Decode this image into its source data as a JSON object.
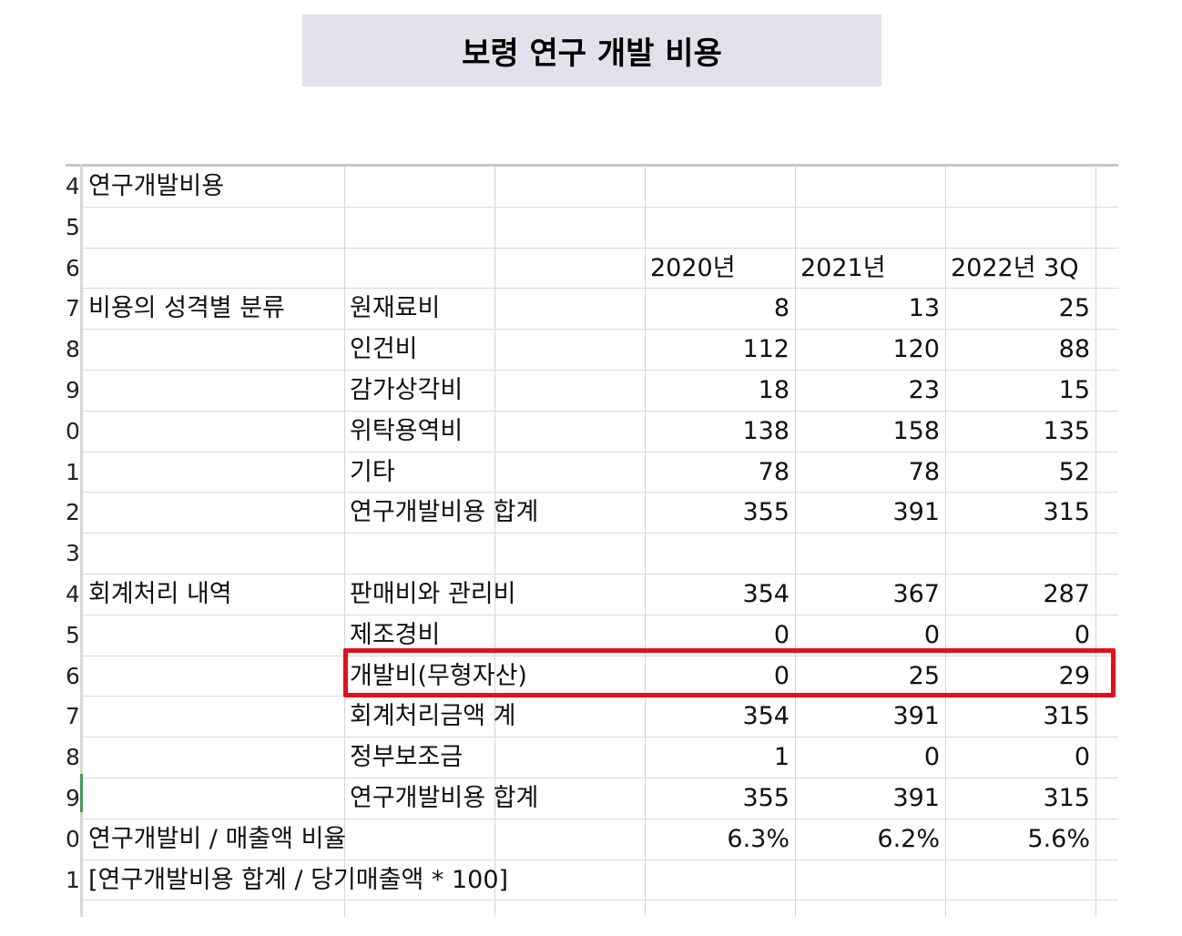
{
  "title": "보령 연구 개발 비용",
  "colors": {
    "title_bg": "#e4e0ec",
    "highlight": "#e3101a"
  },
  "sheet": {
    "header_row": {
      "rownum": "6",
      "years": [
        "2020년",
        "2021년",
        "2022년 3Q"
      ]
    },
    "rows": [
      {
        "rownum": "4",
        "a": "연구개발비용",
        "b": "",
        "v": [
          "",
          "",
          ""
        ]
      },
      {
        "rownum": "5",
        "a": "",
        "b": "",
        "v": [
          "",
          "",
          ""
        ]
      },
      {
        "rownum": "6",
        "a": "",
        "b": "",
        "v": [
          "2020년",
          "2021년",
          "2022년 3Q"
        ]
      },
      {
        "rownum": "7",
        "a": "비용의 성격별 분류",
        "b": "원재료비",
        "v": [
          "8",
          "13",
          "25"
        ]
      },
      {
        "rownum": "8",
        "a": "",
        "b": "인건비",
        "v": [
          "112",
          "120",
          "88"
        ]
      },
      {
        "rownum": "9",
        "a": "",
        "b": "감가상각비",
        "v": [
          "18",
          "23",
          "15"
        ]
      },
      {
        "rownum": "0",
        "a": "",
        "b": "위탁용역비",
        "v": [
          "138",
          "158",
          "135"
        ]
      },
      {
        "rownum": "1",
        "a": "",
        "b": "기타",
        "v": [
          "78",
          "78",
          "52"
        ]
      },
      {
        "rownum": "2",
        "a": "",
        "b": "연구개발비용 합계",
        "v": [
          "355",
          "391",
          "315"
        ]
      },
      {
        "rownum": "3",
        "a": "",
        "b": "",
        "v": [
          "",
          "",
          ""
        ]
      },
      {
        "rownum": "4",
        "a": "회계처리 내역",
        "b": "판매비와 관리비",
        "v": [
          "354",
          "367",
          "287"
        ]
      },
      {
        "rownum": "5",
        "a": "",
        "b": "제조경비",
        "v": [
          "0",
          "0",
          "0"
        ]
      },
      {
        "rownum": "6",
        "a": "",
        "b": "개발비(무형자산)",
        "v": [
          "0",
          "25",
          "29"
        ]
      },
      {
        "rownum": "7",
        "a": "",
        "b": "회계처리금액 계",
        "v": [
          "354",
          "391",
          "315"
        ]
      },
      {
        "rownum": "8",
        "a": "",
        "b": "정부보조금",
        "v": [
          "1",
          "0",
          "0"
        ]
      },
      {
        "rownum": "9",
        "a": "",
        "b": "연구개발비용 합계",
        "v": [
          "355",
          "391",
          "315"
        ]
      },
      {
        "rownum": "0",
        "a": "연구개발비 / 매출액 비율",
        "b": "",
        "v": [
          "6.3%",
          "6.2%",
          "5.6%"
        ]
      },
      {
        "rownum": "1",
        "a": "[연구개발비용 합계 / 당기매출액 * 100]",
        "b": "",
        "v": [
          "",
          "",
          ""
        ]
      }
    ]
  }
}
